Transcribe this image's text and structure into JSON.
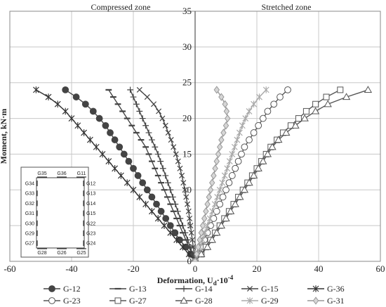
{
  "chart_data": {
    "type": "line",
    "title": "",
    "xlabel": "Deformation, U",
    "xlabel_sub": "d",
    "xlabel_tail": "·10",
    "xlabel_sup": "-4",
    "ylabel": "Moment, kN·m",
    "xlim": [
      -60,
      60
    ],
    "ylim": [
      0,
      35
    ],
    "x_ticks": [
      -60,
      -40,
      -20,
      0,
      20,
      40,
      60
    ],
    "y_ticks": [
      0,
      5,
      10,
      15,
      20,
      25,
      30,
      35
    ],
    "grid": true,
    "zone_labels": {
      "left": "Compressed zone",
      "right": "Stretched zone"
    },
    "legend_position": "bottom",
    "series": [
      {
        "name": "G-12",
        "marker": "circle-filled",
        "color": "#444444",
        "points": [
          [
            0,
            0
          ],
          [
            -1.5,
            1
          ],
          [
            -3,
            2
          ],
          [
            -5,
            3
          ],
          [
            -6.5,
            4
          ],
          [
            -8,
            5
          ],
          [
            -9.5,
            6
          ],
          [
            -11,
            7
          ],
          [
            -12.5,
            8
          ],
          [
            -14,
            9
          ],
          [
            -15.5,
            10
          ],
          [
            -17,
            11
          ],
          [
            -18.5,
            12
          ],
          [
            -20,
            13
          ],
          [
            -21.5,
            14
          ],
          [
            -23,
            15
          ],
          [
            -24.5,
            16
          ],
          [
            -26,
            17
          ],
          [
            -27.5,
            18
          ],
          [
            -29,
            19
          ],
          [
            -31,
            20
          ],
          [
            -33,
            21
          ],
          [
            -35.5,
            22
          ],
          [
            -38.5,
            23
          ],
          [
            -42,
            24
          ]
        ]
      },
      {
        "name": "G-13",
        "marker": "dash",
        "color": "#444444",
        "points": [
          [
            0,
            0
          ],
          [
            -1,
            1
          ],
          [
            -2,
            2
          ],
          [
            -3,
            3
          ],
          [
            -4,
            4
          ],
          [
            -5,
            5
          ],
          [
            -6,
            6
          ],
          [
            -7,
            7
          ],
          [
            -8,
            8
          ],
          [
            -9,
            9
          ],
          [
            -10,
            10
          ],
          [
            -11,
            11
          ],
          [
            -12,
            12
          ],
          [
            -13,
            13
          ],
          [
            -14,
            14
          ],
          [
            -15,
            15
          ],
          [
            -16,
            16
          ],
          [
            -17.5,
            17
          ],
          [
            -19,
            18
          ],
          [
            -20.5,
            19
          ],
          [
            -22,
            20
          ],
          [
            -23.5,
            21
          ],
          [
            -25,
            22
          ],
          [
            -26.5,
            23
          ],
          [
            -28,
            24
          ]
        ]
      },
      {
        "name": "G-14",
        "marker": "plus",
        "color": "#444444",
        "points": [
          [
            0,
            0
          ],
          [
            -0.8,
            1
          ],
          [
            -1.6,
            2
          ],
          [
            -2.4,
            3
          ],
          [
            -3.2,
            4
          ],
          [
            -4,
            5
          ],
          [
            -4.8,
            6
          ],
          [
            -5.6,
            7
          ],
          [
            -6.4,
            8
          ],
          [
            -7.2,
            9
          ],
          [
            -8,
            10
          ],
          [
            -8.8,
            11
          ],
          [
            -9.6,
            12
          ],
          [
            -10.4,
            13
          ],
          [
            -11.2,
            14
          ],
          [
            -12,
            15
          ],
          [
            -13,
            16
          ],
          [
            -14,
            17
          ],
          [
            -15,
            18
          ],
          [
            -16,
            19
          ],
          [
            -17,
            20
          ],
          [
            -18,
            21
          ],
          [
            -19,
            22
          ],
          [
            -20,
            23
          ],
          [
            -21,
            24
          ]
        ]
      },
      {
        "name": "G-15",
        "marker": "x",
        "color": "#444444",
        "points": [
          [
            0,
            0
          ],
          [
            -0.3,
            1
          ],
          [
            -0.6,
            2
          ],
          [
            -0.9,
            3
          ],
          [
            -1.2,
            4
          ],
          [
            -1.5,
            5
          ],
          [
            -1.8,
            6
          ],
          [
            -2.1,
            7
          ],
          [
            -2.5,
            8
          ],
          [
            -2.9,
            9
          ],
          [
            -3.3,
            10
          ],
          [
            -3.8,
            11
          ],
          [
            -4.3,
            12
          ],
          [
            -4.9,
            13
          ],
          [
            -5.5,
            14
          ],
          [
            -6.2,
            15
          ],
          [
            -7,
            16
          ],
          [
            -7.8,
            17
          ],
          [
            -8.7,
            18
          ],
          [
            -9.6,
            19
          ],
          [
            -10.6,
            20
          ],
          [
            -11.8,
            21
          ],
          [
            -13.4,
            22
          ],
          [
            -15.5,
            23
          ],
          [
            -18,
            24
          ]
        ]
      },
      {
        "name": "G-36",
        "marker": "asterisk",
        "color": "#333333",
        "points": [
          [
            0,
            0
          ],
          [
            -2,
            1
          ],
          [
            -4,
            2
          ],
          [
            -6,
            3
          ],
          [
            -8,
            4
          ],
          [
            -10,
            5
          ],
          [
            -12,
            6
          ],
          [
            -14,
            7
          ],
          [
            -16,
            8
          ],
          [
            -18,
            9
          ],
          [
            -20,
            10
          ],
          [
            -22,
            11
          ],
          [
            -24,
            12
          ],
          [
            -26,
            13
          ],
          [
            -28,
            14
          ],
          [
            -30,
            15
          ],
          [
            -32,
            16
          ],
          [
            -34,
            17
          ],
          [
            -36,
            18
          ],
          [
            -38,
            19
          ],
          [
            -40,
            20
          ],
          [
            -42,
            21
          ],
          [
            -44.5,
            22
          ],
          [
            -47.5,
            23
          ],
          [
            -51.5,
            24
          ]
        ]
      },
      {
        "name": "G-23",
        "marker": "circle-open",
        "color": "#555555",
        "points": [
          [
            0,
            0
          ],
          [
            1,
            1
          ],
          [
            2,
            2
          ],
          [
            3,
            3
          ],
          [
            4,
            4
          ],
          [
            5,
            5
          ],
          [
            6,
            6
          ],
          [
            7,
            7
          ],
          [
            8,
            8
          ],
          [
            9,
            9
          ],
          [
            10,
            10
          ],
          [
            11,
            11
          ],
          [
            12,
            12
          ],
          [
            13,
            13
          ],
          [
            14,
            14
          ],
          [
            15,
            15
          ],
          [
            16,
            16
          ],
          [
            17.5,
            17
          ],
          [
            19,
            18
          ],
          [
            20.5,
            19
          ],
          [
            22,
            20
          ],
          [
            23.5,
            21
          ],
          [
            25.5,
            22
          ],
          [
            27.5,
            23
          ],
          [
            30,
            24
          ]
        ]
      },
      {
        "name": "G-27",
        "marker": "square-open",
        "color": "#555555",
        "points": [
          [
            0,
            0
          ],
          [
            2,
            1
          ],
          [
            3.5,
            2
          ],
          [
            5,
            3
          ],
          [
            6.5,
            4
          ],
          [
            8,
            5
          ],
          [
            9.5,
            6
          ],
          [
            11,
            7
          ],
          [
            12.5,
            8
          ],
          [
            14,
            9
          ],
          [
            15.5,
            10
          ],
          [
            17,
            11
          ],
          [
            18.5,
            12
          ],
          [
            20,
            13
          ],
          [
            21.5,
            14
          ],
          [
            23,
            15
          ],
          [
            24.5,
            16
          ],
          [
            26.5,
            17
          ],
          [
            28.5,
            18
          ],
          [
            31,
            19
          ],
          [
            33.5,
            20
          ],
          [
            36,
            21
          ],
          [
            39,
            22
          ],
          [
            42.5,
            23
          ],
          [
            47,
            24
          ]
        ]
      },
      {
        "name": "G-28",
        "marker": "triangle-open",
        "color": "#555555",
        "points": [
          [
            0,
            0
          ],
          [
            2,
            1
          ],
          [
            4,
            2
          ],
          [
            5.5,
            3
          ],
          [
            7,
            4
          ],
          [
            8.5,
            5
          ],
          [
            10,
            6
          ],
          [
            11.5,
            7
          ],
          [
            13,
            8
          ],
          [
            14.5,
            9
          ],
          [
            16,
            10
          ],
          [
            17.5,
            11
          ],
          [
            19,
            12
          ],
          [
            20.5,
            13
          ],
          [
            22,
            14
          ],
          [
            23.5,
            15
          ],
          [
            25,
            16
          ],
          [
            27,
            17
          ],
          [
            29.5,
            18
          ],
          [
            32.5,
            19
          ],
          [
            35.5,
            20
          ],
          [
            39,
            21
          ],
          [
            43,
            22
          ],
          [
            49,
            23
          ],
          [
            56,
            24
          ]
        ]
      },
      {
        "name": "G-29",
        "marker": "asterisk",
        "color": "#aaaaaa",
        "points": [
          [
            0,
            0
          ],
          [
            0.8,
            1
          ],
          [
            1.6,
            2
          ],
          [
            2.4,
            3
          ],
          [
            3.2,
            4
          ],
          [
            4,
            5
          ],
          [
            4.8,
            6
          ],
          [
            5.6,
            7
          ],
          [
            6.4,
            8
          ],
          [
            7.2,
            9
          ],
          [
            8,
            10
          ],
          [
            8.8,
            11
          ],
          [
            9.6,
            12
          ],
          [
            10.4,
            13
          ],
          [
            11.2,
            14
          ],
          [
            12,
            15
          ],
          [
            12.8,
            16
          ],
          [
            13.6,
            17
          ],
          [
            14.4,
            18
          ],
          [
            15.3,
            19
          ],
          [
            16.3,
            20
          ],
          [
            17.5,
            21
          ],
          [
            19,
            22
          ],
          [
            20.8,
            23
          ],
          [
            23,
            24
          ]
        ]
      },
      {
        "name": "G-31",
        "marker": "diamond-filled",
        "color": "#999999",
        "points": [
          [
            0,
            0
          ],
          [
            0.5,
            1
          ],
          [
            1,
            2
          ],
          [
            1.5,
            3
          ],
          [
            2,
            4
          ],
          [
            2.5,
            5
          ],
          [
            3,
            6
          ],
          [
            3.5,
            7
          ],
          [
            4,
            8
          ],
          [
            4.5,
            9
          ],
          [
            5,
            10
          ],
          [
            5.5,
            11
          ],
          [
            6,
            12
          ],
          [
            6.5,
            13
          ],
          [
            7,
            14
          ],
          [
            7.5,
            15
          ],
          [
            8,
            16
          ],
          [
            8.5,
            17
          ],
          [
            9.2,
            18
          ],
          [
            10,
            19
          ],
          [
            10.5,
            20
          ],
          [
            10.2,
            21
          ],
          [
            9.7,
            22
          ],
          [
            8.5,
            23
          ],
          [
            7,
            24
          ]
        ]
      }
    ]
  },
  "inset": {
    "top_labels": [
      "G35",
      "G36",
      "G11"
    ],
    "left_labels": [
      "G34",
      "G33",
      "G32",
      "G31",
      "G30",
      "G29",
      "G27"
    ],
    "right_labels": [
      "G12",
      "G13",
      "G14",
      "G15",
      "G22",
      "G23",
      "G24"
    ],
    "bottom_labels": [
      "G28",
      "G26",
      "G25"
    ]
  }
}
